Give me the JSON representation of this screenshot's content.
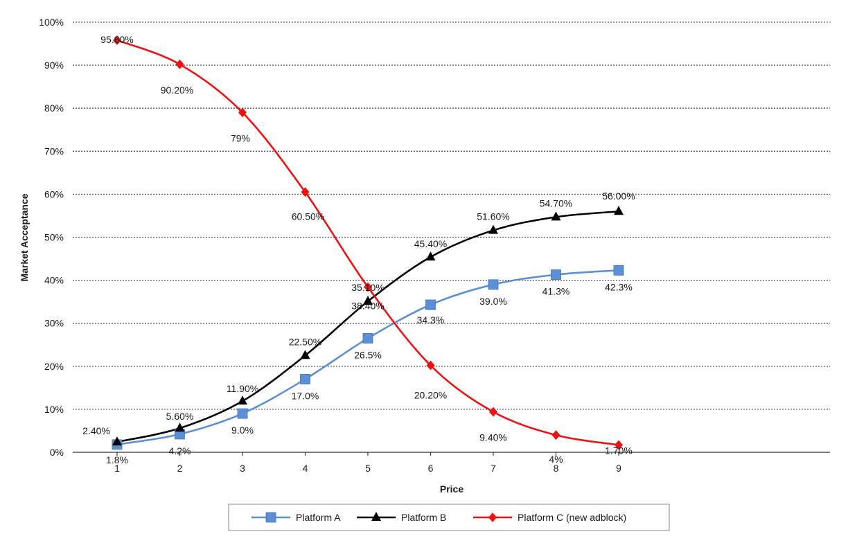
{
  "chart_data": {
    "type": "line",
    "title": "",
    "xlabel": "Price",
    "ylabel": "Market Acceptance",
    "categories": [
      "1",
      "2",
      "3",
      "4",
      "5",
      "6",
      "7",
      "8",
      "9"
    ],
    "ylim": [
      0,
      100
    ],
    "y_ticks": [
      "0%",
      "10%",
      "20%",
      "30%",
      "40%",
      "50%",
      "60%",
      "70%",
      "80%",
      "90%",
      "100%"
    ],
    "grid": "horizontal dotted",
    "legend_position": "bottom",
    "series": [
      {
        "name": "Platform A",
        "color": "#5b8fd6",
        "marker": "square",
        "values": [
          1.8,
          4.2,
          9.0,
          17.0,
          26.5,
          34.3,
          39.0,
          41.3,
          42.3
        ],
        "labels": [
          "1.8%",
          "4.2%",
          "9.0%",
          "17.0%",
          "26.5%",
          "34.3%",
          "39.0%",
          "41.3%",
          "42.3%"
        ]
      },
      {
        "name": "Platform B",
        "color": "#000000",
        "marker": "triangle",
        "values": [
          2.4,
          5.6,
          11.9,
          22.5,
          35.1,
          45.4,
          51.6,
          54.7,
          56.0
        ],
        "labels": [
          "2.40%",
          "5.60%",
          "11.90%",
          "22.50%",
          "35.10%",
          "45.40%",
          "51.60%",
          "54.70%",
          "56.00%"
        ]
      },
      {
        "name": "Platform C (new adblock)",
        "color": "#ee1111",
        "marker": "diamond",
        "values": [
          95.8,
          90.2,
          79.0,
          60.5,
          38.4,
          20.2,
          9.4,
          4.0,
          1.7
        ],
        "labels": [
          "95.80%",
          "90.20%",
          "79%",
          "60.50%",
          "38.40%",
          "20.20%",
          "9.40%",
          "4%",
          "1.70%"
        ]
      }
    ]
  }
}
